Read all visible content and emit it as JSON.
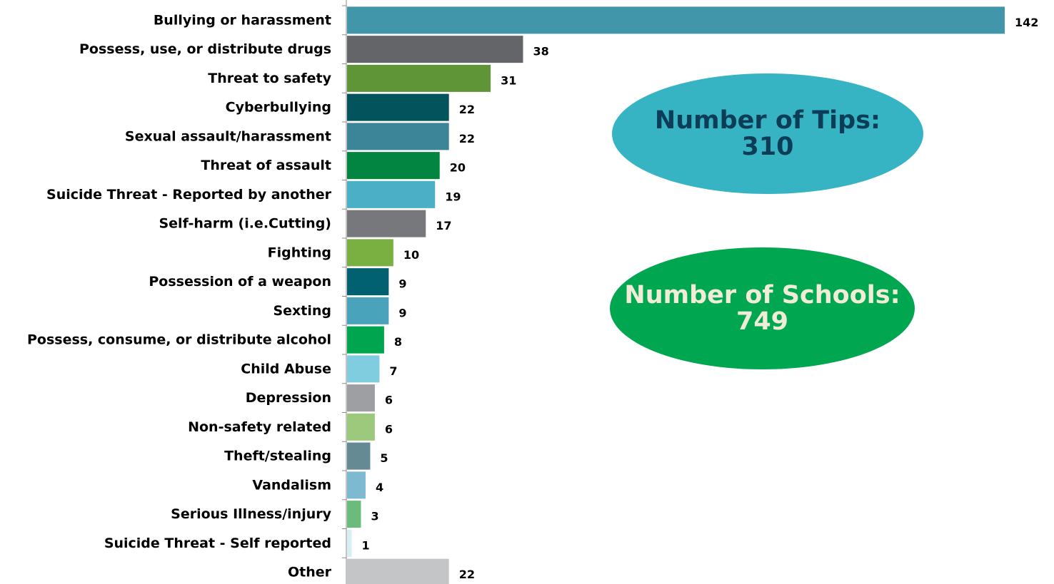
{
  "chart_data": {
    "type": "bar",
    "orientation": "horizontal",
    "title": "",
    "xlabel": "",
    "ylabel": "",
    "xlim": [
      0,
      142
    ],
    "grid": false,
    "categories": [
      "Bullying or harassment",
      "Possess, use, or distribute drugs",
      "Threat to safety",
      "Cyberbullying",
      "Sexual assault/harassment",
      "Threat of assault",
      "Suicide Threat - Reported by another",
      "Self-harm (i.e.Cutting)",
      "Fighting",
      "Possession of a weapon",
      "Sexting",
      "Possess, consume, or distribute alcohol",
      "Child Abuse",
      "Depression",
      "Non-safety related",
      "Theft/stealing",
      "Vandalism",
      "Serious Illness/injury",
      "Suicide Threat - Self reported",
      "Other"
    ],
    "values": [
      142,
      38,
      31,
      22,
      22,
      20,
      19,
      17,
      10,
      9,
      9,
      8,
      7,
      6,
      6,
      5,
      4,
      3,
      1,
      22
    ],
    "colors": [
      "#4296a9",
      "#646569",
      "#5f9437",
      "#03535d",
      "#3c8497",
      "#018540",
      "#4bb0c5",
      "#77787b",
      "#7ab042",
      "#026170",
      "#49a3bb",
      "#00a550",
      "#81cde0",
      "#9e9fa2",
      "#9dc97c",
      "#658a93",
      "#7dbad2",
      "#6bbc7c",
      "#d8eef3",
      "#c4c5c7"
    ]
  },
  "summary": {
    "tips_label": "Number of Tips:",
    "tips_value": "310",
    "tips_color": "#37b4c3",
    "schools_label": "Number of Schools:",
    "schools_value": "749",
    "schools_color": "#00a650"
  }
}
